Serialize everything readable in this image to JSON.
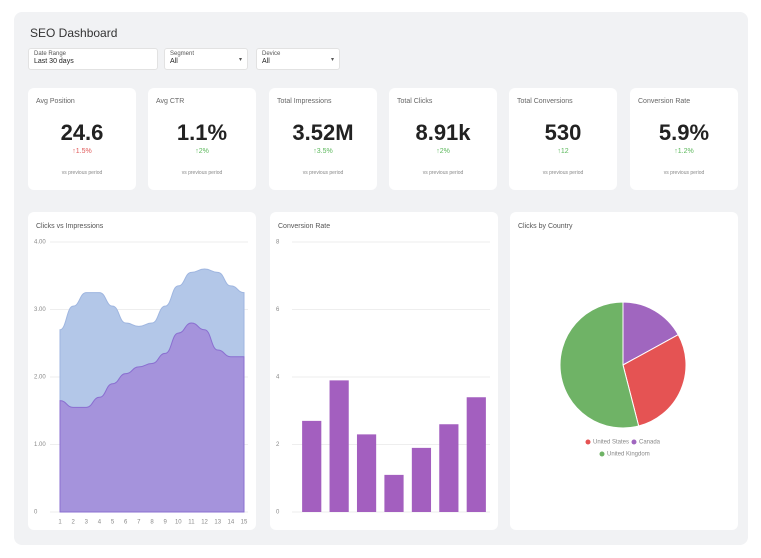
{
  "header": {
    "title": "SEO Dashboard"
  },
  "filters": [
    {
      "label": "Date Range",
      "value": "Last 30 days"
    },
    {
      "label": "Segment",
      "value": "All"
    },
    {
      "label": "Device",
      "value": "All"
    }
  ],
  "kpis": [
    {
      "label": "Avg Position",
      "value": "24.6",
      "change": "↑1.5%",
      "trend": "bad",
      "note": "vs previous period"
    },
    {
      "label": "Avg CTR",
      "value": "1.1%",
      "change": "↑2%",
      "trend": "good",
      "note": "vs previous period"
    },
    {
      "label": "Total Impressions",
      "value": "3.52M",
      "change": "↑3.5%",
      "trend": "good",
      "note": "vs previous period"
    },
    {
      "label": "Total Clicks",
      "value": "8.91k",
      "change": "↑2%",
      "trend": "good",
      "note": "vs previous period"
    },
    {
      "label": "Total Conversions",
      "value": "530",
      "change": "↑12",
      "trend": "good",
      "note": "vs previous period"
    },
    {
      "label": "Conversion Rate",
      "value": "5.9%",
      "change": "↑1.2%",
      "trend": "good",
      "note": "vs previous period"
    }
  ],
  "chart_data": [
    {
      "type": "area",
      "title": "Clicks vs Impressions",
      "categories": [
        "1",
        "2",
        "3",
        "4",
        "5",
        "6",
        "7",
        "8",
        "9",
        "10",
        "11",
        "12",
        "13",
        "14",
        "15"
      ],
      "series": [
        {
          "color": "#b3c7e8",
          "values": [
            2700,
            3050,
            3250,
            3250,
            3050,
            2800,
            2750,
            2800,
            3050,
            3350,
            3550,
            3600,
            3550,
            3350,
            3250
          ]
        },
        {
          "color": "#a593dc",
          "values": [
            1650,
            1550,
            1550,
            1700,
            1900,
            2050,
            2150,
            2200,
            2350,
            2650,
            2800,
            2700,
            2400,
            2300,
            2300
          ]
        }
      ],
      "ylim": [
        0,
        4000
      ],
      "yticks": [
        0,
        {
          "value": 1000,
          "label": "1.00"
        },
        {
          "value": 2000,
          "label": "2.00"
        },
        {
          "value": 3000,
          "label": "3.00"
        },
        {
          "value": 4000,
          "label": "4.00"
        }
      ],
      "grid": true
    },
    {
      "type": "bar",
      "title": "Conversion Rate",
      "categories": [
        null,
        null,
        null,
        null,
        null,
        null,
        null
      ],
      "values": [
        2.7,
        3.9,
        2.3,
        1.1,
        1.9,
        2.6,
        3.4
      ],
      "color": "#a35fbf",
      "ylim": [
        0,
        8
      ],
      "yticks": [
        0,
        2,
        4,
        6,
        8
      ],
      "grid": true
    },
    {
      "type": "pie",
      "title": "Clicks by Country",
      "categories": [
        "United States",
        "Canada",
        "United Kingdom"
      ],
      "values": [
        29,
        17,
        54
      ],
      "colors": [
        "#e55353",
        "#a066bf",
        "#6fb366"
      ]
    }
  ]
}
